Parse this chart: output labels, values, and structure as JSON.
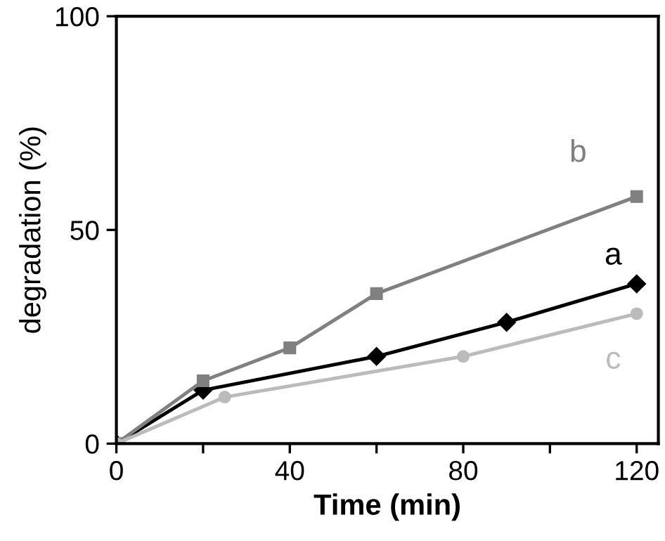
{
  "chart_data": {
    "type": "line",
    "xlabel": "Time (min)",
    "ylabel": "degradation (%)",
    "xlim": [
      0,
      125
    ],
    "ylim": [
      0,
      100
    ],
    "xticks": [
      0,
      {
        "value": 20,
        "label": null
      },
      40,
      {
        "value": 60,
        "label": null
      },
      80,
      {
        "value": 100,
        "label": null
      },
      120
    ],
    "yticks": [
      0,
      50,
      100
    ],
    "grid": false,
    "legend": false,
    "line_style": "solid",
    "series": [
      {
        "name": "a",
        "color": "#000000",
        "marker": "diamond",
        "x": [
          0,
          20,
          60,
          90,
          120
        ],
        "values": [
          0,
          12.5,
          20.4,
          28.4,
          37.4
        ]
      },
      {
        "name": "b",
        "color": "#808080",
        "marker": "square",
        "x": [
          0,
          20,
          40,
          60,
          120
        ],
        "values": [
          0,
          14.7,
          22.4,
          35.1,
          57.8
        ]
      },
      {
        "name": "c",
        "color": "#bbbbbb",
        "marker": "circle",
        "x": [
          0,
          25,
          80,
          120
        ],
        "values": [
          0,
          10.9,
          20.4,
          30.4
        ]
      }
    ]
  }
}
